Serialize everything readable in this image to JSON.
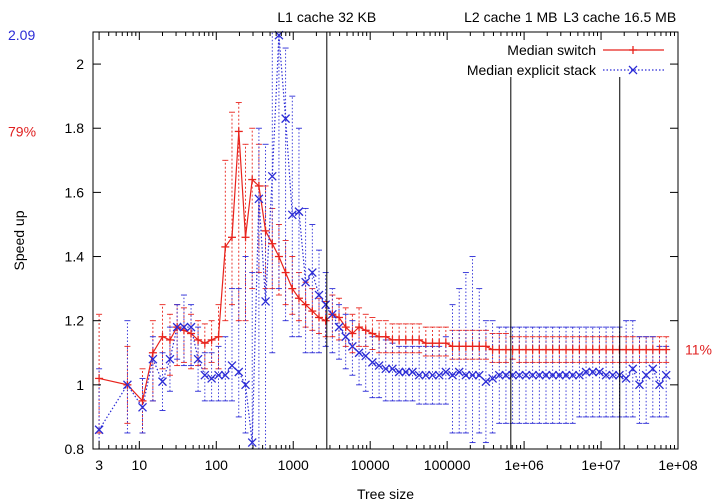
{
  "chart_data": {
    "type": "line",
    "xlabel": "Tree size",
    "ylabel": "Speed up",
    "x_scale": "log",
    "xlim": [
      2.5,
      100000000
    ],
    "ylim": [
      0.8,
      2.1
    ],
    "x_ticks": [
      {
        "value": 3,
        "label": "3"
      },
      {
        "value": 10,
        "label": "10"
      },
      {
        "value": 100,
        "label": "100"
      },
      {
        "value": 1000,
        "label": "1000"
      },
      {
        "value": 10000,
        "label": "10000"
      },
      {
        "value": 100000,
        "label": "100000"
      },
      {
        "value": 1000000,
        "label": "1e+06"
      },
      {
        "value": 10000000,
        "label": "1e+07"
      },
      {
        "value": 100000000,
        "label": "1e+08"
      }
    ],
    "y_ticks": [
      {
        "value": 0.8,
        "label": "0.8"
      },
      {
        "value": 1.0,
        "label": "1"
      },
      {
        "value": 1.2,
        "label": "1.2"
      },
      {
        "value": 1.4,
        "label": "1.4"
      },
      {
        "value": 1.6,
        "label": "1.6"
      },
      {
        "value": 1.8,
        "label": "1.8"
      },
      {
        "value": 2.0,
        "label": "2"
      }
    ],
    "grid": false,
    "legend_position": "top-right",
    "cache_lines": [
      {
        "label": "L1 cache 32 KB",
        "x": 2731
      },
      {
        "label": "L2 cache 1 MB",
        "x": 672000
      },
      {
        "label": "L3 cache 16.5 MB",
        "x": 17500000
      }
    ],
    "side_annotations": [
      {
        "label": "2.09",
        "y": 2.09,
        "side": "left",
        "color": "#2b2bd6"
      },
      {
        "label": "79%",
        "y": 1.79,
        "side": "left",
        "color": "#e02020"
      },
      {
        "label": "11%",
        "y": 1.11,
        "side": "right",
        "color": "#e02020"
      }
    ],
    "series": [
      {
        "name": "Median switch",
        "color": "#e8231c",
        "marker": "plus",
        "line": "solid",
        "points": [
          [
            3,
            1.02,
            0.85,
            1.22
          ],
          [
            7,
            1.0,
            0.88,
            1.12
          ],
          [
            11,
            0.95,
            0.85,
            1.05
          ],
          [
            15,
            1.1,
            0.95,
            1.2
          ],
          [
            20,
            1.15,
            1.05,
            1.25
          ],
          [
            25,
            1.14,
            1.03,
            1.22
          ],
          [
            31,
            1.18,
            1.06,
            1.25
          ],
          [
            38,
            1.17,
            1.07,
            1.24
          ],
          [
            47,
            1.16,
            1.05,
            1.22
          ],
          [
            58,
            1.14,
            1.06,
            1.2
          ],
          [
            71,
            1.13,
            1.05,
            1.19
          ],
          [
            87,
            1.14,
            1.07,
            1.2
          ],
          [
            107,
            1.15,
            1.05,
            1.25
          ],
          [
            131,
            1.43,
            1.2,
            1.7
          ],
          [
            160,
            1.46,
            1.25,
            1.85
          ],
          [
            196,
            1.79,
            1.2,
            1.88
          ],
          [
            240,
            1.46,
            1.2,
            1.75
          ],
          [
            293,
            1.64,
            1.3,
            1.8
          ],
          [
            358,
            1.62,
            1.35,
            1.75
          ],
          [
            437,
            1.48,
            1.3,
            1.62
          ],
          [
            534,
            1.44,
            1.3,
            1.55
          ],
          [
            652,
            1.4,
            1.28,
            1.5
          ],
          [
            796,
            1.35,
            1.25,
            1.45
          ],
          [
            972,
            1.3,
            1.22,
            1.4
          ],
          [
            1187,
            1.27,
            1.2,
            1.35
          ],
          [
            1449,
            1.25,
            1.18,
            1.32
          ],
          [
            1770,
            1.23,
            1.17,
            1.3
          ],
          [
            2162,
            1.21,
            1.16,
            1.27
          ],
          [
            2640,
            1.2,
            1.15,
            1.26
          ],
          [
            3224,
            1.22,
            1.15,
            1.28
          ],
          [
            3937,
            1.21,
            1.14,
            1.27
          ],
          [
            4807,
            1.18,
            1.12,
            1.24
          ],
          [
            5870,
            1.16,
            1.1,
            1.22
          ],
          [
            7168,
            1.18,
            1.12,
            1.24
          ],
          [
            8753,
            1.17,
            1.12,
            1.22
          ],
          [
            10689,
            1.16,
            1.11,
            1.21
          ],
          [
            13052,
            1.15,
            1.1,
            1.2
          ],
          [
            15938,
            1.15,
            1.1,
            1.2
          ],
          [
            19462,
            1.14,
            1.1,
            1.19
          ],
          [
            23766,
            1.14,
            1.1,
            1.19
          ],
          [
            29021,
            1.14,
            1.1,
            1.19
          ],
          [
            35438,
            1.14,
            1.1,
            1.19
          ],
          [
            43274,
            1.14,
            1.1,
            1.19
          ],
          [
            52843,
            1.13,
            1.09,
            1.18
          ],
          [
            64527,
            1.13,
            1.09,
            1.18
          ],
          [
            78795,
            1.13,
            1.09,
            1.18
          ],
          [
            96218,
            1.13,
            1.09,
            1.18
          ],
          [
            117494,
            1.12,
            1.08,
            1.17
          ],
          [
            143474,
            1.12,
            1.08,
            1.17
          ],
          [
            175199,
            1.12,
            1.08,
            1.17
          ],
          [
            213939,
            1.12,
            1.08,
            1.17
          ],
          [
            261245,
            1.12,
            1.08,
            1.17
          ],
          [
            319012,
            1.12,
            1.08,
            1.17
          ],
          [
            389552,
            1.11,
            1.07,
            1.16
          ],
          [
            475690,
            1.11,
            1.07,
            1.16
          ],
          [
            580874,
            1.11,
            1.07,
            1.16
          ],
          [
            709316,
            1.11,
            1.08,
            1.15
          ],
          [
            866159,
            1.11,
            1.07,
            1.15
          ],
          [
            1057683,
            1.11,
            1.07,
            1.15
          ],
          [
            1291557,
            1.11,
            1.07,
            1.15
          ],
          [
            1577144,
            1.11,
            1.07,
            1.15
          ],
          [
            1925880,
            1.11,
            1.07,
            1.15
          ],
          [
            2351727,
            1.11,
            1.07,
            1.15
          ],
          [
            2871738,
            1.11,
            1.07,
            1.15
          ],
          [
            3506731,
            1.11,
            1.07,
            1.15
          ],
          [
            4282131,
            1.11,
            1.07,
            1.15
          ],
          [
            5228983,
            1.11,
            1.07,
            1.15
          ],
          [
            6385211,
            1.11,
            1.07,
            1.15
          ],
          [
            7797105,
            1.11,
            1.07,
            1.15
          ],
          [
            9521208,
            1.11,
            1.07,
            1.15
          ],
          [
            11626540,
            1.11,
            1.07,
            1.15
          ],
          [
            14197400,
            1.11,
            1.07,
            1.15
          ],
          [
            17336800,
            1.11,
            1.07,
            1.15
          ],
          [
            21170300,
            1.11,
            1.07,
            1.15
          ],
          [
            25851500,
            1.11,
            1.07,
            1.15
          ],
          [
            31567800,
            1.11,
            1.07,
            1.15
          ],
          [
            38548100,
            1.11,
            1.07,
            1.15
          ],
          [
            47071900,
            1.11,
            1.07,
            1.15
          ],
          [
            57480400,
            1.11,
            1.07,
            1.15
          ],
          [
            70190400,
            1.11,
            1.07,
            1.15
          ]
        ]
      },
      {
        "name": "Median explicit stack",
        "color": "#2b2bd6",
        "marker": "cross",
        "line": "dotted",
        "points": [
          [
            3,
            0.86,
            0.8,
            1.05
          ],
          [
            7,
            1.0,
            0.85,
            1.2
          ],
          [
            11,
            0.93,
            0.85,
            1.02
          ],
          [
            15,
            1.08,
            0.95,
            1.15
          ],
          [
            20,
            1.01,
            0.92,
            1.1
          ],
          [
            25,
            1.08,
            0.98,
            1.18
          ],
          [
            31,
            1.18,
            1.08,
            1.25
          ],
          [
            38,
            1.18,
            1.06,
            1.28
          ],
          [
            47,
            1.18,
            1.06,
            1.25
          ],
          [
            58,
            1.08,
            0.98,
            1.18
          ],
          [
            71,
            1.03,
            0.95,
            1.1
          ],
          [
            87,
            1.02,
            0.95,
            1.1
          ],
          [
            107,
            1.03,
            0.95,
            1.12
          ],
          [
            131,
            1.03,
            0.95,
            1.15
          ],
          [
            160,
            1.06,
            0.95,
            1.3
          ],
          [
            196,
            1.04,
            0.9,
            1.3
          ],
          [
            240,
            1.0,
            0.85,
            1.4
          ],
          [
            293,
            0.82,
            0.8,
            1.35
          ],
          [
            358,
            1.58,
            0.8,
            1.8
          ],
          [
            437,
            1.26,
            0.8,
            1.75
          ],
          [
            534,
            1.65,
            1.1,
            2.1
          ],
          [
            652,
            2.09,
            1.3,
            2.1
          ],
          [
            796,
            1.83,
            1.2,
            2.05
          ],
          [
            972,
            1.53,
            1.15,
            1.9
          ],
          [
            1187,
            1.54,
            1.15,
            1.8
          ],
          [
            1449,
            1.32,
            1.1,
            1.55
          ],
          [
            1770,
            1.35,
            1.1,
            1.5
          ],
          [
            2162,
            1.28,
            1.1,
            1.42
          ],
          [
            2640,
            1.25,
            1.12,
            1.35
          ],
          [
            3224,
            1.22,
            1.1,
            1.3
          ],
          [
            3937,
            1.18,
            1.08,
            1.25
          ],
          [
            4807,
            1.15,
            1.05,
            1.22
          ],
          [
            5870,
            1.12,
            1.03,
            1.2
          ],
          [
            7168,
            1.1,
            1.0,
            1.18
          ],
          [
            8753,
            1.09,
            0.98,
            1.17
          ],
          [
            10689,
            1.07,
            0.96,
            1.15
          ],
          [
            13052,
            1.06,
            0.96,
            1.15
          ],
          [
            15938,
            1.05,
            0.95,
            1.14
          ],
          [
            19462,
            1.05,
            0.95,
            1.13
          ],
          [
            23766,
            1.04,
            0.95,
            1.12
          ],
          [
            29021,
            1.04,
            0.95,
            1.12
          ],
          [
            35438,
            1.04,
            0.95,
            1.12
          ],
          [
            43274,
            1.03,
            0.94,
            1.12
          ],
          [
            52843,
            1.03,
            0.94,
            1.12
          ],
          [
            64527,
            1.03,
            0.94,
            1.12
          ],
          [
            78795,
            1.03,
            0.94,
            1.12
          ],
          [
            96218,
            1.04,
            0.94,
            1.15
          ],
          [
            117494,
            1.03,
            0.85,
            1.25
          ],
          [
            143474,
            1.04,
            0.85,
            1.3
          ],
          [
            175199,
            1.03,
            0.85,
            1.35
          ],
          [
            213939,
            1.03,
            0.82,
            1.4
          ],
          [
            261245,
            1.03,
            0.85,
            1.3
          ],
          [
            319012,
            1.01,
            0.82,
            1.2
          ],
          [
            389552,
            1.02,
            0.85,
            1.2
          ],
          [
            475690,
            1.03,
            0.88,
            1.18
          ],
          [
            580874,
            1.03,
            0.88,
            1.18
          ],
          [
            709316,
            1.03,
            0.88,
            1.18
          ],
          [
            866159,
            1.03,
            0.88,
            1.18
          ],
          [
            1057683,
            1.03,
            0.88,
            1.18
          ],
          [
            1291557,
            1.03,
            0.88,
            1.18
          ],
          [
            1577144,
            1.03,
            0.88,
            1.18
          ],
          [
            1925880,
            1.03,
            0.88,
            1.18
          ],
          [
            2351727,
            1.03,
            0.88,
            1.18
          ],
          [
            2871738,
            1.03,
            0.88,
            1.18
          ],
          [
            3506731,
            1.03,
            0.88,
            1.18
          ],
          [
            4282131,
            1.03,
            0.88,
            1.18
          ],
          [
            5228983,
            1.03,
            0.9,
            1.18
          ],
          [
            6385211,
            1.04,
            0.9,
            1.18
          ],
          [
            7797105,
            1.04,
            0.9,
            1.18
          ],
          [
            9521208,
            1.04,
            0.9,
            1.18
          ],
          [
            11626540,
            1.03,
            0.9,
            1.18
          ],
          [
            14197400,
            1.03,
            0.9,
            1.18
          ],
          [
            17336800,
            1.03,
            0.9,
            1.18
          ],
          [
            21170300,
            1.02,
            0.9,
            1.2
          ],
          [
            25851500,
            1.05,
            0.9,
            1.2
          ],
          [
            31567800,
            1.0,
            0.88,
            1.15
          ],
          [
            38548100,
            1.03,
            0.88,
            1.15
          ],
          [
            47071900,
            1.05,
            0.9,
            1.15
          ],
          [
            57480400,
            1.0,
            0.9,
            1.12
          ],
          [
            70190400,
            1.03,
            0.9,
            1.12
          ]
        ]
      }
    ]
  }
}
